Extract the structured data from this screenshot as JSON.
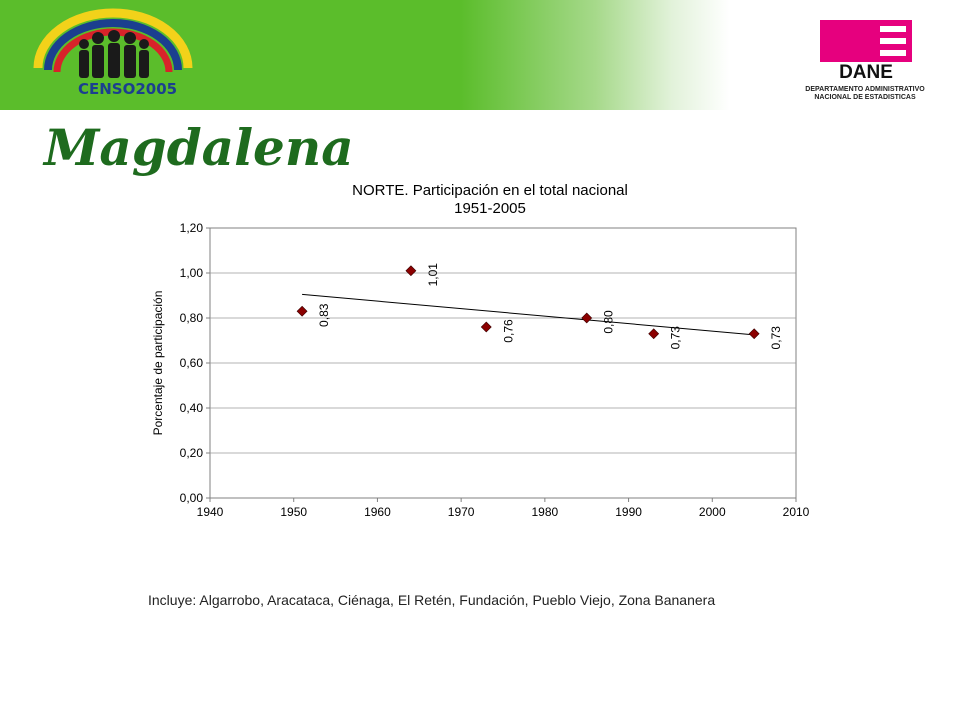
{
  "header": {
    "censo_label": "CENSO2005",
    "dane_label": "DANE",
    "dane_subtitle": [
      "DEPARTAMENTO ADMINISTRATIVO",
      "NACIONAL DE ESTADISTICAS"
    ],
    "colors": {
      "banner_green": "#5bbd2b",
      "dane_magenta": "#e6007e",
      "title_green": "#1e6b1e"
    }
  },
  "page_title": "Magdalena",
  "chart_data": {
    "type": "scatter",
    "title": [
      "NORTE. Participación en el total nacional",
      "1951-2005"
    ],
    "xlabel": "",
    "ylabel": "Porcentaje de participación",
    "xlim": [
      1940,
      2010
    ],
    "ylim": [
      0,
      1.2
    ],
    "x_ticks": [
      "1940",
      "1950",
      "1960",
      "1970",
      "1980",
      "1990",
      "2000",
      "2010"
    ],
    "y_ticks": [
      "0,00",
      "0,20",
      "0,40",
      "0,60",
      "0,80",
      "1,00",
      "1,20"
    ],
    "grid": true,
    "marker_color": "#8b0000",
    "points": [
      {
        "x": 1951,
        "y": 0.83,
        "label": "0,83"
      },
      {
        "x": 1964,
        "y": 1.01,
        "label": "1,01"
      },
      {
        "x": 1973,
        "y": 0.76,
        "label": "0,76"
      },
      {
        "x": 1985,
        "y": 0.8,
        "label": "0,80"
      },
      {
        "x": 1993,
        "y": 0.73,
        "label": "0,73"
      },
      {
        "x": 2005,
        "y": 0.73,
        "label": "0,73"
      }
    ],
    "trendline": {
      "x": [
        1951,
        2005
      ],
      "y": [
        0.905,
        0.725
      ]
    }
  },
  "footnote": "Incluye: Algarrobo, Aracataca, Ciénaga, El Retén, Fundación, Pueblo Viejo, Zona Bananera"
}
